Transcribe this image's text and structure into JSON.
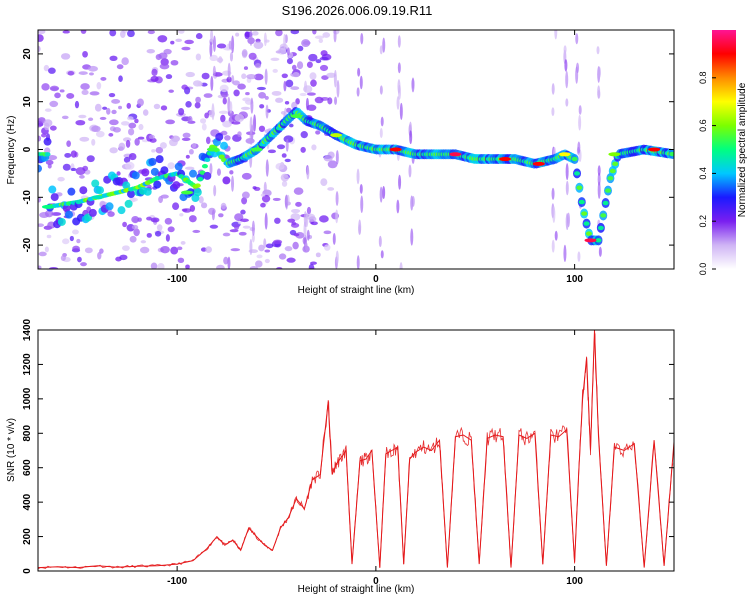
{
  "title": "S196.2026.006.09.19.R11",
  "chart_data": [
    {
      "type": "heatmap",
      "xlabel": "Height of straight line (km)",
      "ylabel": "Frequency (Hz)",
      "xlim": [
        -170,
        150
      ],
      "ylim": [
        -25,
        25
      ],
      "xticks": [
        -100,
        0,
        100
      ],
      "yticks": [
        20,
        10,
        0,
        -10,
        -20
      ],
      "colorbar": {
        "label": "Normalized spectral amplitude",
        "range": [
          0,
          1
        ],
        "ticks": [
          "0.0",
          "0.2",
          "0.4",
          "0.6",
          "0.8"
        ],
        "stops": [
          "#ffffff",
          "#cfb4f5",
          "#7a1ff0",
          "#1a1aff",
          "#00c8ff",
          "#00ff80",
          "#7cff00",
          "#ffff00",
          "#ff8c00",
          "#ff0000",
          "#ff1493"
        ]
      },
      "ridge": [
        [
          -165,
          -12
        ],
        [
          -150,
          -11
        ],
        [
          -140,
          -10
        ],
        [
          -130,
          -9
        ],
        [
          -120,
          -8
        ],
        [
          -110,
          -6
        ],
        [
          -100,
          -5
        ],
        [
          -90,
          -8
        ],
        [
          -82,
          1
        ],
        [
          -75,
          -3
        ],
        [
          -68,
          -2
        ],
        [
          -60,
          0
        ],
        [
          -55,
          2
        ],
        [
          -50,
          4
        ],
        [
          -45,
          6
        ],
        [
          -40,
          8
        ],
        [
          -35,
          6
        ],
        [
          -28,
          5
        ],
        [
          -20,
          3
        ],
        [
          -10,
          1
        ],
        [
          0,
          0
        ],
        [
          10,
          0
        ],
        [
          20,
          -1
        ],
        [
          30,
          -1
        ],
        [
          40,
          -1
        ],
        [
          50,
          -2
        ],
        [
          60,
          -2
        ],
        [
          70,
          -2
        ],
        [
          80,
          -3
        ],
        [
          90,
          -2
        ],
        [
          95,
          -1
        ],
        [
          100,
          -2
        ],
        [
          104,
          -12
        ],
        [
          108,
          -19
        ],
        [
          112,
          -19
        ],
        [
          118,
          -6
        ],
        [
          122,
          -1
        ],
        [
          135,
          0
        ],
        [
          150,
          -1
        ]
      ]
    },
    {
      "type": "line",
      "xlabel": "Height of straight line (km)",
      "ylabel": "SNR (10 * v/v)",
      "xlim": [
        -170,
        150
      ],
      "ylim": [
        0,
        1400
      ],
      "xticks": [
        -100,
        0,
        100
      ],
      "yticks": [
        0,
        200,
        400,
        600,
        800,
        1000,
        1200,
        1400
      ],
      "color": "#e41a1c",
      "x": [
        -170,
        -160,
        -150,
        -140,
        -130,
        -120,
        -110,
        -100,
        -92,
        -85,
        -80,
        -76,
        -72,
        -68,
        -64,
        -60,
        -56,
        -52,
        -48,
        -44,
        -40,
        -36,
        -32,
        -28,
        -24,
        -22,
        -20,
        -18,
        -15,
        -12,
        -8,
        -5,
        -2,
        2,
        5,
        8,
        11,
        14,
        17,
        20,
        24,
        28,
        32,
        36,
        40,
        44,
        48,
        52,
        56,
        60,
        64,
        68,
        72,
        76,
        80,
        84,
        88,
        92,
        96,
        100,
        102,
        104,
        106,
        108,
        110,
        112,
        116,
        120,
        125,
        130,
        135,
        140,
        145,
        150
      ],
      "values": [
        20,
        25,
        20,
        30,
        22,
        28,
        30,
        40,
        60,
        130,
        200,
        150,
        180,
        120,
        250,
        200,
        150,
        120,
        250,
        310,
        420,
        360,
        530,
        560,
        980,
        560,
        620,
        650,
        700,
        40,
        640,
        650,
        700,
        20,
        680,
        700,
        720,
        40,
        650,
        690,
        720,
        700,
        760,
        20,
        780,
        790,
        760,
        40,
        770,
        790,
        780,
        20,
        790,
        770,
        800,
        40,
        790,
        780,
        820,
        50,
        560,
        1000,
        1240,
        700,
        1400,
        780,
        30,
        720,
        700,
        740,
        20,
        760,
        30,
        750
      ]
    }
  ]
}
